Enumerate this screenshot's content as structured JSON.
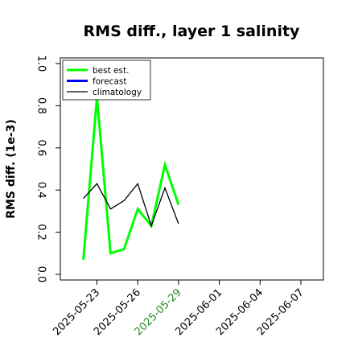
{
  "chart_data": {
    "type": "line",
    "title": "RMS diff., layer 1 salinity",
    "ylabel": "RMS diff. (1e-3)",
    "xlabel": "",
    "ylim": [
      0.0,
      1.0
    ],
    "yticks": [
      "0.0",
      "0.2",
      "0.4",
      "0.6",
      "0.8",
      "1.0"
    ],
    "xticks": [
      "2025-05-23",
      "2025-05-26",
      "2025-05-29",
      "2025-06-01",
      "2025-06-04",
      "2025-06-07"
    ],
    "highlight_tick": "2025-05-29",
    "highlight_color": "#228B22",
    "legend_position": "upper left",
    "grid": false,
    "series": [
      {
        "name": "best est.",
        "color": "#00ff00",
        "width": 3,
        "x": [
          "2025-05-22",
          "2025-05-23",
          "2025-05-24",
          "2025-05-25",
          "2025-05-26",
          "2025-05-27",
          "2025-05-28",
          "2025-05-29"
        ],
        "values": [
          0.07,
          0.84,
          0.1,
          0.12,
          0.31,
          0.23,
          0.52,
          0.33
        ]
      },
      {
        "name": "forecast",
        "color": "#0000ff",
        "width": 3,
        "x": [],
        "values": []
      },
      {
        "name": "climatology",
        "color": "#000000",
        "width": 1.3,
        "x": [
          "2025-05-22",
          "2025-05-23",
          "2025-05-24",
          "2025-05-25",
          "2025-05-26",
          "2025-05-27",
          "2025-05-28",
          "2025-05-29"
        ],
        "values": [
          0.36,
          0.43,
          0.31,
          0.35,
          0.43,
          0.23,
          0.41,
          0.24
        ]
      }
    ]
  }
}
